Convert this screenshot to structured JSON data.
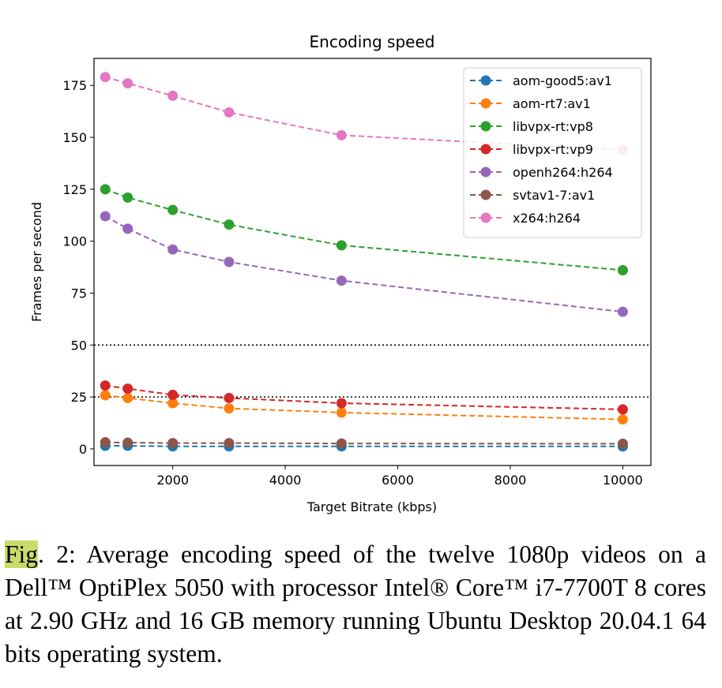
{
  "chart_data": {
    "type": "line",
    "title": "Encoding speed",
    "xlabel": "Target Bitrate (kbps)",
    "ylabel": "Frames per second",
    "xlim": [
      600,
      10500
    ],
    "ylim": [
      -8,
      188
    ],
    "xticks": [
      2000,
      4000,
      6000,
      8000,
      10000
    ],
    "yticks": [
      0,
      25,
      50,
      75,
      100,
      125,
      150,
      175
    ],
    "x": [
      800,
      1200,
      2000,
      3000,
      5000,
      10000
    ],
    "reference_lines": [
      50,
      25
    ],
    "legend_position": "top-right",
    "series": [
      {
        "name": "aom-good5:av1",
        "color": "#1f77b4",
        "values": [
          1.5,
          1.5,
          1.2,
          1.2,
          1.2,
          1.2
        ]
      },
      {
        "name": "aom-rt7:av1",
        "color": "#ff7f0e",
        "values": [
          25.8,
          24.5,
          22,
          19.5,
          17.5,
          14.2
        ]
      },
      {
        "name": "libvpx-rt:vp8",
        "color": "#2ca02c",
        "values": [
          125,
          121,
          115,
          108,
          98,
          86
        ]
      },
      {
        "name": "libvpx-rt:vp9",
        "color": "#d62728",
        "values": [
          30.5,
          29,
          26,
          24.5,
          22,
          19
        ]
      },
      {
        "name": "openh264:h264",
        "color": "#9467bd",
        "values": [
          112,
          106,
          96,
          90,
          81,
          66
        ]
      },
      {
        "name": "svtav1-7:av1",
        "color": "#8c564b",
        "values": [
          3.2,
          3,
          2.8,
          2.8,
          2.6,
          2.5
        ]
      },
      {
        "name": "x264:h264",
        "color": "#e377c2",
        "values": [
          179,
          176,
          170,
          162,
          151,
          144
        ]
      }
    ]
  },
  "caption": {
    "highlight": "Fig",
    "text": ". 2: Average encoding speed of the twelve 1080p videos on a Dell™ OptiPlex 5050 with processor Intel® Core™ i7-7700T 8 cores at 2.90 GHz and 16 GB memory running Ubuntu Desktop 20.04.1 64 bits operating system."
  }
}
